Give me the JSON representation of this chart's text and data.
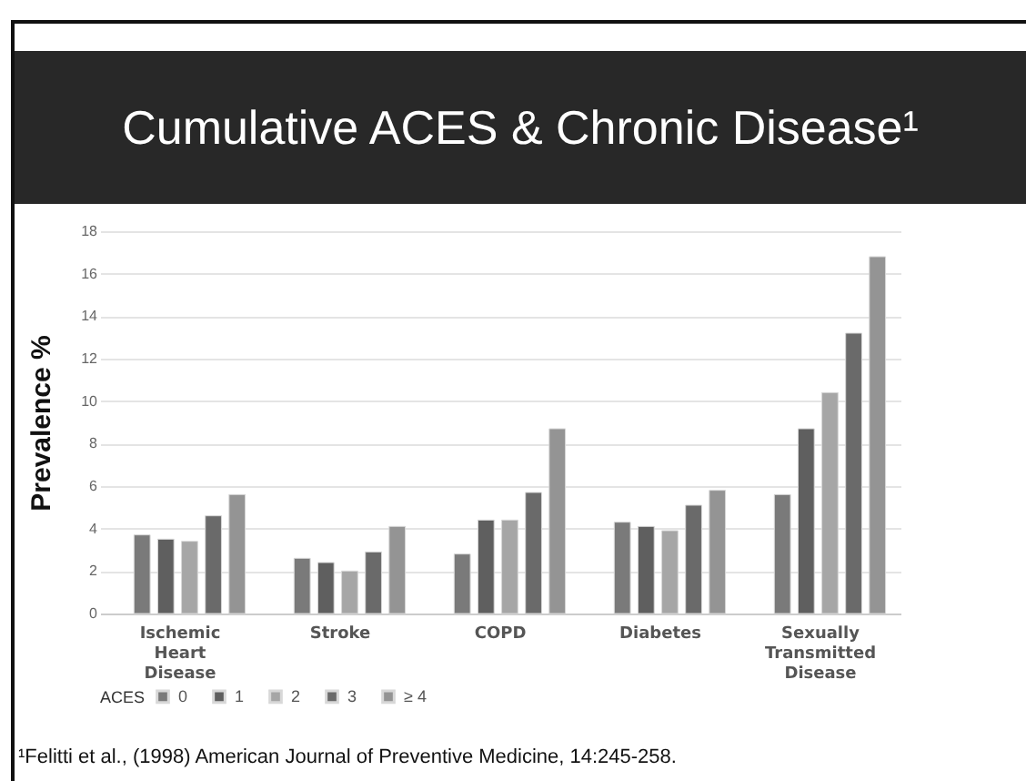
{
  "chart_data": {
    "type": "bar",
    "title": "Cumulative ACES & Chronic Disease¹",
    "ylabel": "Prevalence %",
    "legend_title": "ACES",
    "categories": [
      "Ischemic Heart Disease",
      "Stroke",
      "COPD",
      "Diabetes",
      "Sexually Transmitted Disease"
    ],
    "series": [
      {
        "name": "0",
        "color": "#7a7a7a",
        "values": [
          3.7,
          2.6,
          2.8,
          4.3,
          5.6
        ]
      },
      {
        "name": "1",
        "color": "#5f5f5f",
        "values": [
          3.5,
          2.4,
          4.4,
          4.1,
          8.7
        ]
      },
      {
        "name": "2",
        "color": "#a6a6a6",
        "values": [
          3.4,
          2.0,
          4.4,
          3.9,
          10.4
        ]
      },
      {
        "name": "3",
        "color": "#6a6a6a",
        "values": [
          4.6,
          2.9,
          5.7,
          5.1,
          13.2
        ]
      },
      {
        "name": "≥ 4",
        "color": "#949494",
        "values": [
          5.6,
          4.1,
          8.7,
          5.8,
          16.8
        ]
      }
    ],
    "ylim": [
      0,
      18
    ],
    "yticks": [
      0,
      2,
      4,
      6,
      8,
      10,
      12,
      14,
      16,
      18
    ],
    "grid": "y",
    "legend": "bottom",
    "annotations": [
      "¹Felitti et al., (1998) American Journal of Preventive Medicine, 14:245-258."
    ]
  }
}
